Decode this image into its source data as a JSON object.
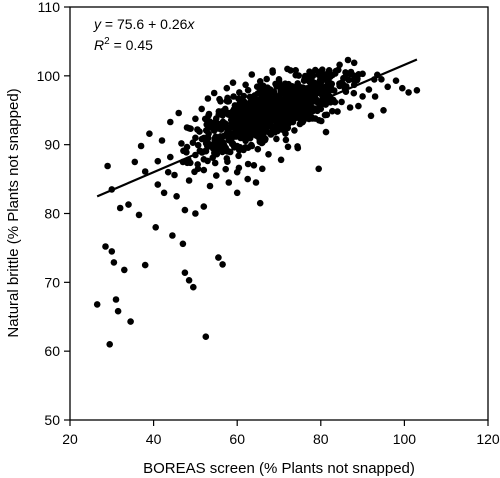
{
  "chart_data": {
    "type": "scatter",
    "xlabel": "BOREAS screen (% Plants not snapped)",
    "ylabel": "Natural brittle (% Plants not snapped)",
    "xlim": [
      20,
      120
    ],
    "ylim": [
      50,
      110
    ],
    "xticks": [
      20,
      40,
      60,
      80,
      100,
      120
    ],
    "yticks": [
      50,
      60,
      70,
      80,
      90,
      100,
      110
    ],
    "grid": false,
    "annotation": {
      "equation": {
        "y": "y",
        "eq": " = 75.6 + 0.26",
        "x": "x"
      },
      "r2": {
        "R": "R",
        "exp": "2",
        "rest": " = 0.45"
      }
    },
    "regression": {
      "intercept": 75.6,
      "slope": 0.26,
      "x_range": [
        26.5,
        103
      ]
    },
    "points": [
      [
        26.5,
        66.8
      ],
      [
        29.5,
        61.0
      ],
      [
        31.0,
        67.5
      ],
      [
        31.5,
        65.8
      ],
      [
        34.5,
        64.3
      ],
      [
        52.5,
        62.1
      ],
      [
        28.5,
        75.2
      ],
      [
        30.0,
        74.5
      ],
      [
        30.5,
        72.9
      ],
      [
        33.0,
        71.8
      ],
      [
        38.0,
        72.5
      ],
      [
        29.0,
        86.9
      ],
      [
        30.0,
        83.5
      ],
      [
        32.0,
        80.8
      ],
      [
        34.0,
        81.3
      ],
      [
        36.5,
        79.8
      ],
      [
        38.0,
        86.1
      ],
      [
        35.5,
        87.5
      ],
      [
        40.5,
        78.0
      ],
      [
        44.5,
        76.8
      ],
      [
        47.0,
        75.6
      ],
      [
        47.5,
        71.4
      ],
      [
        48.5,
        70.3
      ],
      [
        49.5,
        69.3
      ],
      [
        55.5,
        73.6
      ],
      [
        56.5,
        72.6
      ],
      [
        65.5,
        81.5
      ],
      [
        79.5,
        86.5
      ],
      [
        37.0,
        89.8
      ],
      [
        39.0,
        91.6
      ],
      [
        42.0,
        90.6
      ],
      [
        43.5,
        86.0
      ],
      [
        41.0,
        84.2
      ],
      [
        45.5,
        82.5
      ],
      [
        47.5,
        80.5
      ],
      [
        50.0,
        80.0
      ],
      [
        52.0,
        81.0
      ],
      [
        53.5,
        84.0
      ],
      [
        55.0,
        85.5
      ],
      [
        58.0,
        84.5
      ],
      [
        60.0,
        86.0
      ],
      [
        62.5,
        85.0
      ],
      [
        64.0,
        87.0
      ],
      [
        66.0,
        86.5
      ],
      [
        44.0,
        93.3
      ],
      [
        46.0,
        94.6
      ],
      [
        48.0,
        92.5
      ],
      [
        50.0,
        91.0
      ],
      [
        51.5,
        95.2
      ],
      [
        53.0,
        96.7
      ],
      [
        54.5,
        97.5
      ],
      [
        56.0,
        96.3
      ],
      [
        57.5,
        98.2
      ],
      [
        59.0,
        99.0
      ],
      [
        60.5,
        97.6
      ],
      [
        62.0,
        98.7
      ],
      [
        63.5,
        100.2
      ],
      [
        65.5,
        99.2
      ],
      [
        67.0,
        98.0
      ],
      [
        68.5,
        100.5
      ],
      [
        70.0,
        99.5
      ],
      [
        72.0,
        101.0
      ],
      [
        74.0,
        100.8
      ],
      [
        76.0,
        99.3
      ],
      [
        78.0,
        100.4
      ],
      [
        80.0,
        99.0
      ],
      [
        82.0,
        100.8
      ],
      [
        84.5,
        101.6
      ],
      [
        86.5,
        102.3
      ],
      [
        88.0,
        101.9
      ],
      [
        90.0,
        100.3
      ],
      [
        91.5,
        98.0
      ],
      [
        93.0,
        97.0
      ],
      [
        94.5,
        99.5
      ],
      [
        96.0,
        98.4
      ],
      [
        98.0,
        99.3
      ],
      [
        99.5,
        98.2
      ],
      [
        101.0,
        97.6
      ],
      [
        103.0,
        97.9
      ],
      [
        95.0,
        95.0
      ],
      [
        92.0,
        94.2
      ],
      [
        89.0,
        95.6
      ],
      [
        86.0,
        97.7
      ],
      [
        83.0,
        96.5
      ],
      [
        80.0,
        95.2
      ],
      [
        77.0,
        96.0
      ],
      [
        74.0,
        95.5
      ],
      [
        71.0,
        94.3
      ],
      [
        68.0,
        93.5
      ],
      [
        65.0,
        92.6
      ],
      [
        62.0,
        92.0
      ],
      [
        59.0,
        91.4
      ],
      [
        56.0,
        90.6
      ],
      [
        53.0,
        89.7
      ],
      [
        50.0,
        88.5
      ],
      [
        47.0,
        87.5
      ],
      [
        44.0,
        88.2
      ],
      [
        41.0,
        87.6
      ],
      [
        55.0,
        93.0
      ],
      [
        58.0,
        94.6
      ],
      [
        61.0,
        95.8
      ],
      [
        64.0,
        96.3
      ],
      [
        67.0,
        95.5
      ],
      [
        70.0,
        96.8
      ],
      [
        73.0,
        97.2
      ],
      [
        76.0,
        98.0
      ],
      [
        79.0,
        97.4
      ],
      [
        82.0,
        98.2
      ],
      [
        85.0,
        99.0
      ],
      [
        88.0,
        98.7
      ],
      [
        66.0,
        90.5
      ],
      [
        69.0,
        91.8
      ],
      [
        72.0,
        92.4
      ],
      [
        75.0,
        93.0
      ],
      [
        78.0,
        93.8
      ],
      [
        81.0,
        94.3
      ],
      [
        84.0,
        94.8
      ],
      [
        87.0,
        95.4
      ],
      [
        57.5,
        88.0
      ],
      [
        60.5,
        89.2
      ],
      [
        63.5,
        89.8
      ],
      [
        52.0,
        86.3
      ],
      [
        48.5,
        84.8
      ],
      [
        45.0,
        85.6
      ],
      [
        42.5,
        83.0
      ],
      [
        60.0,
        83.0
      ],
      [
        64.5,
        84.5
      ],
      [
        70.5,
        87.8
      ],
      [
        74.5,
        89.5
      ],
      [
        67.5,
        88.6
      ]
    ]
  }
}
